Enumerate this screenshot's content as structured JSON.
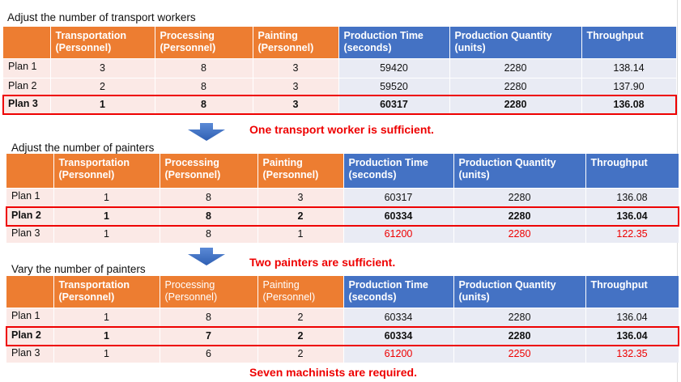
{
  "tables": [
    {
      "title": "Adjust the number of transport workers",
      "headers": [
        "",
        "Transportation (Personnel)",
        "Processing (Personnel)",
        "Painting (Personnel)",
        "Production Time (seconds)",
        "Production Quantity (units)",
        "Throughput"
      ],
      "rows": [
        [
          "Plan 1",
          "3",
          "8",
          "3",
          "59420",
          "2280",
          "138.14"
        ],
        [
          "Plan 2",
          "2",
          "8",
          "3",
          "59520",
          "2280",
          "137.90"
        ],
        [
          "Plan 3",
          "1",
          "8",
          "3",
          "60317",
          "2280",
          "136.08"
        ]
      ],
      "highlight_row": 2,
      "red_row": -1,
      "note": "One transport worker is sufficient."
    },
    {
      "title": "Adjust the number of painters",
      "headers": [
        "",
        "Transportation (Personnel)",
        "Processing (Personnel)",
        "Painting (Personnel)",
        "Production Time (seconds)",
        "Production Quantity (units)",
        "Throughput"
      ],
      "rows": [
        [
          "Plan 1",
          "1",
          "8",
          "3",
          "60317",
          "2280",
          "136.08"
        ],
        [
          "Plan 2",
          "1",
          "8",
          "2",
          "60334",
          "2280",
          "136.04"
        ],
        [
          "Plan 3",
          "1",
          "8",
          "1",
          "61200",
          "2280",
          "122.35"
        ]
      ],
      "highlight_row": 1,
      "red_row": 2,
      "note": "Two painters are sufficient."
    },
    {
      "title": "Vary the number of painters",
      "headers": [
        "",
        "Transportation (Personnel)",
        "Processing (Personnel)",
        "Painting (Personnel)",
        "Production Time (seconds)",
        "Production Quantity (units)",
        "Throughput"
      ],
      "rows": [
        [
          "Plan 1",
          "1",
          "8",
          "2",
          "60334",
          "2280",
          "136.04"
        ],
        [
          "Plan 2",
          "1",
          "7",
          "2",
          "60334",
          "2280",
          "136.04"
        ],
        [
          "Plan 3",
          "1",
          "6",
          "2",
          "61200",
          "2250",
          "132.35"
        ]
      ],
      "highlight_row": 1,
      "red_row": 2,
      "note": "Seven machinists are required."
    }
  ],
  "colors": {
    "orange": "#ed7d31",
    "blue": "#4472c4",
    "red": "#e00000"
  }
}
